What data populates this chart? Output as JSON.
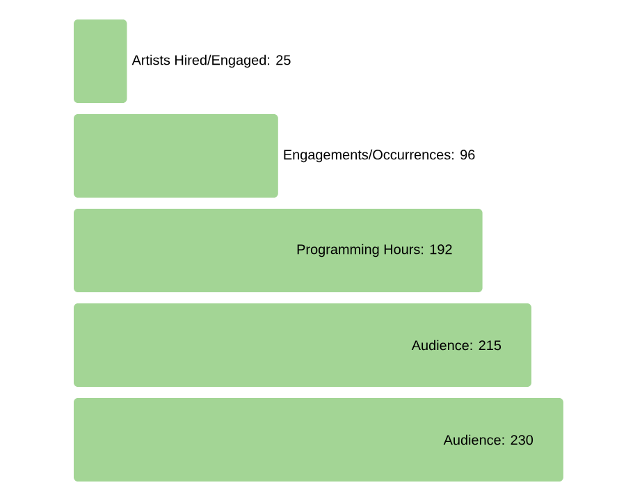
{
  "chart_data": {
    "type": "bar",
    "orientation": "horizontal",
    "categories": [
      null,
      null,
      null,
      null,
      null
    ],
    "values": [
      25,
      96,
      192,
      215,
      230
    ],
    "color": "#a3d595",
    "value_labels": [
      "Artists Hired/Engaged: 25",
      "Engagements/Occurrences: 96",
      "Programming Hours: 192",
      "Audience: 215",
      "Audience: 230"
    ]
  }
}
